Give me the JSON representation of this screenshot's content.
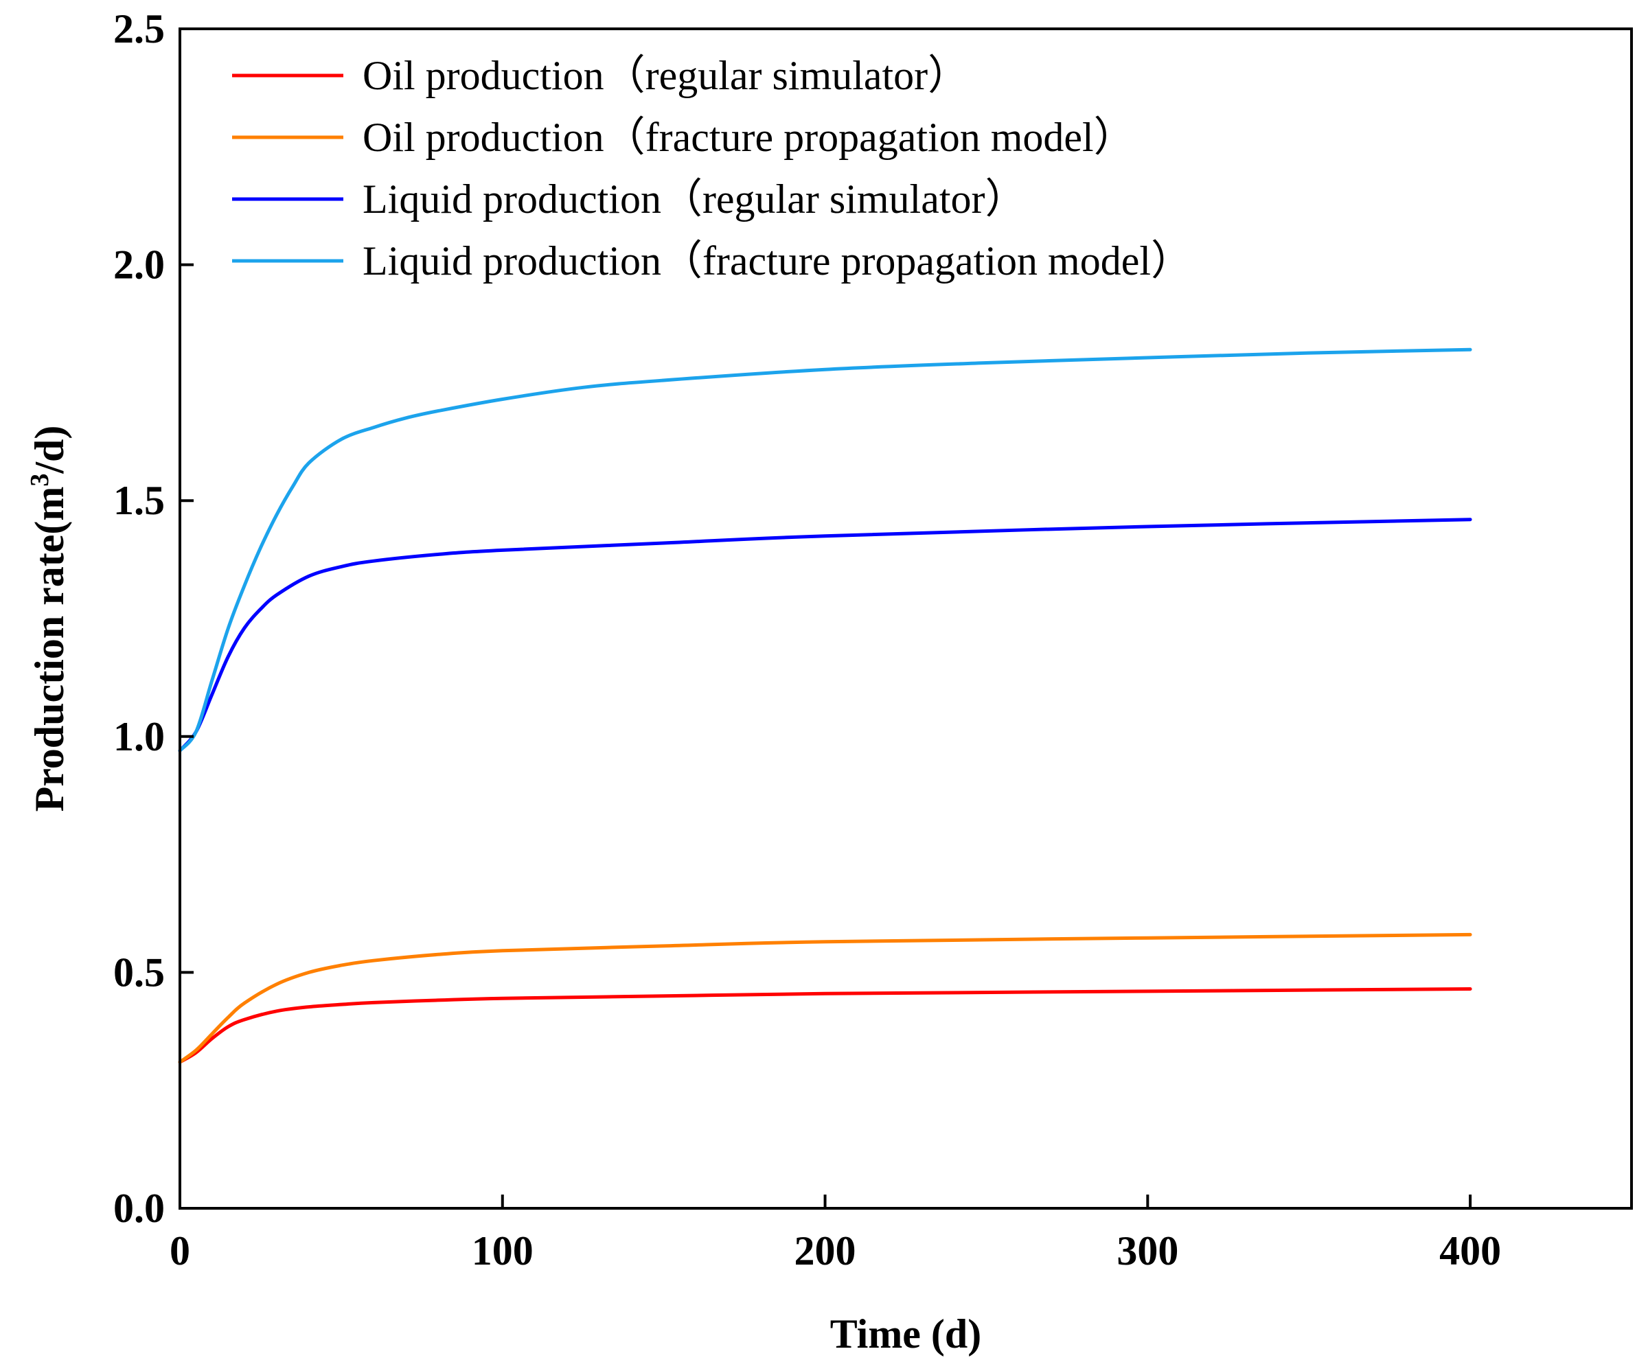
{
  "chart_data": {
    "type": "line",
    "xlabel": "Time (d)",
    "ylabel": "Production rate(m",
    "ylabel_sup": "3",
    "ylabel_tail": "/d)",
    "xlim": [
      0,
      450
    ],
    "ylim": [
      0,
      2.5
    ],
    "x_ticks": [
      0,
      100,
      200,
      300,
      400
    ],
    "x_tick_labels": [
      "0",
      "100",
      "200",
      "300",
      "400"
    ],
    "y_ticks": [
      0,
      0.5,
      1.0,
      1.5,
      2.0,
      2.5
    ],
    "y_tick_labels": [
      "0.0",
      "0.5",
      "1.0",
      "1.5",
      "2.0",
      "2.5"
    ],
    "grid": false,
    "legend_position": "top-left",
    "series": [
      {
        "name": "Oil production（regular simulator）",
        "color": "#ff0000",
        "x": [
          0,
          5,
          10,
          15,
          20,
          30,
          40,
          50,
          60,
          80,
          100,
          150,
          200,
          300,
          400
        ],
        "y": [
          0.31,
          0.33,
          0.36,
          0.385,
          0.4,
          0.418,
          0.427,
          0.432,
          0.436,
          0.441,
          0.445,
          0.45,
          0.455,
          0.46,
          0.465
        ]
      },
      {
        "name": "Oil production（fracture propagation model）",
        "color": "#ff8000",
        "x": [
          0,
          5,
          10,
          15,
          20,
          30,
          40,
          50,
          60,
          80,
          100,
          150,
          200,
          300,
          400
        ],
        "y": [
          0.31,
          0.335,
          0.37,
          0.405,
          0.435,
          0.475,
          0.5,
          0.515,
          0.525,
          0.538,
          0.546,
          0.556,
          0.565,
          0.573,
          0.58
        ]
      },
      {
        "name": "Liquid production（regular simulator）",
        "color": "#0000ff",
        "x": [
          0,
          5,
          10,
          15,
          20,
          25,
          30,
          40,
          50,
          60,
          80,
          100,
          150,
          200,
          300,
          400
        ],
        "y": [
          0.97,
          1.01,
          1.09,
          1.17,
          1.23,
          1.27,
          1.3,
          1.34,
          1.36,
          1.372,
          1.386,
          1.395,
          1.41,
          1.425,
          1.445,
          1.46
        ]
      },
      {
        "name": "Liquid production（fracture propagation model）",
        "color": "#1ca3ec",
        "x": [
          0,
          5,
          10,
          15,
          20,
          25,
          30,
          35,
          40,
          50,
          60,
          70,
          80,
          100,
          125,
          150,
          200,
          250,
          300,
          350,
          400
        ],
        "y": [
          0.97,
          1.01,
          1.12,
          1.23,
          1.32,
          1.4,
          1.47,
          1.53,
          1.58,
          1.63,
          1.655,
          1.675,
          1.69,
          1.715,
          1.74,
          1.755,
          1.778,
          1.792,
          1.803,
          1.813,
          1.82
        ]
      }
    ]
  }
}
